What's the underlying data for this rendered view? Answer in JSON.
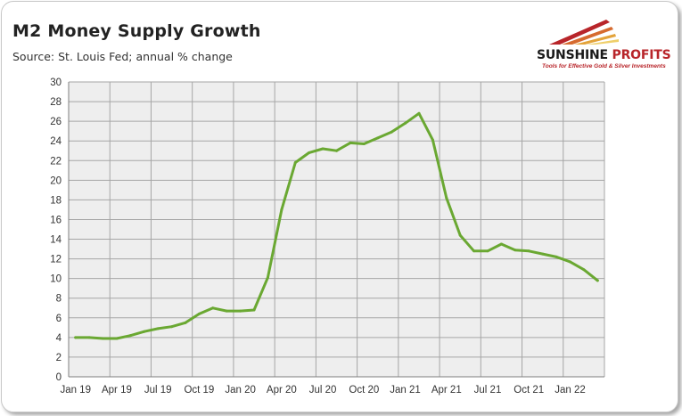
{
  "header": {
    "title": "M2 Money Supply Growth",
    "subtitle": "Source: St. Louis Fed; annual % change"
  },
  "logo": {
    "name_part1": "SUNSHINE ",
    "name_part2": "PROFITS",
    "tagline": "Tools for Effective Gold & Silver Investments"
  },
  "colors": {
    "line": "#6aa832",
    "plot_background": "#eeeeee",
    "grid": "#a6a6a6",
    "brand_red": "#b8252a"
  },
  "chart_data": {
    "type": "line",
    "title": "M2 Money Supply Growth",
    "subtitle": "Source: St. Louis Fed; annual % change",
    "xlabel": "",
    "ylabel": "",
    "grid": true,
    "ylim": [
      0,
      30
    ],
    "yticks": [
      "0",
      "2",
      "4",
      "6",
      "8",
      "10",
      "12",
      "14",
      "16",
      "18",
      "20",
      "22",
      "24",
      "26",
      "28",
      "30"
    ],
    "xticks": [
      "Jan 19",
      "Apr 19",
      "Jul 19",
      "Oct 19",
      "Jan 20",
      "Apr 20",
      "Jul 20",
      "Oct 20",
      "Jan 21",
      "Apr 21",
      "Jul 21",
      "Oct 21",
      "Jan 22"
    ],
    "x": [
      "Jan 19",
      "Feb 19",
      "Mar 19",
      "Apr 19",
      "May 19",
      "Jun 19",
      "Jul 19",
      "Aug 19",
      "Sep 19",
      "Oct 19",
      "Nov 19",
      "Dec 19",
      "Jan 20",
      "Feb 20",
      "Mar 20",
      "Apr 20",
      "May 20",
      "Jun 20",
      "Jul 20",
      "Aug 20",
      "Sep 20",
      "Oct 20",
      "Nov 20",
      "Dec 20",
      "Jan 21",
      "Feb 21",
      "Mar 21",
      "Apr 21",
      "May 21",
      "Jun 21",
      "Jul 21",
      "Aug 21",
      "Sep 21",
      "Oct 21",
      "Nov 21",
      "Dec 21",
      "Jan 22",
      "Feb 22",
      "Mar 22"
    ],
    "series": [
      {
        "values": [
          4.0,
          4.0,
          3.9,
          3.9,
          4.2,
          4.6,
          4.9,
          5.1,
          5.5,
          6.4,
          7.0,
          6.7,
          6.7,
          6.8,
          10.1,
          17.0,
          21.8,
          22.8,
          23.2,
          23.0,
          23.8,
          23.7,
          24.3,
          24.9,
          25.8,
          26.8,
          24.1,
          18.2,
          14.4,
          12.8,
          12.8,
          13.5,
          12.9,
          12.8,
          12.5,
          12.2,
          11.7,
          10.9,
          9.8
        ]
      }
    ]
  }
}
